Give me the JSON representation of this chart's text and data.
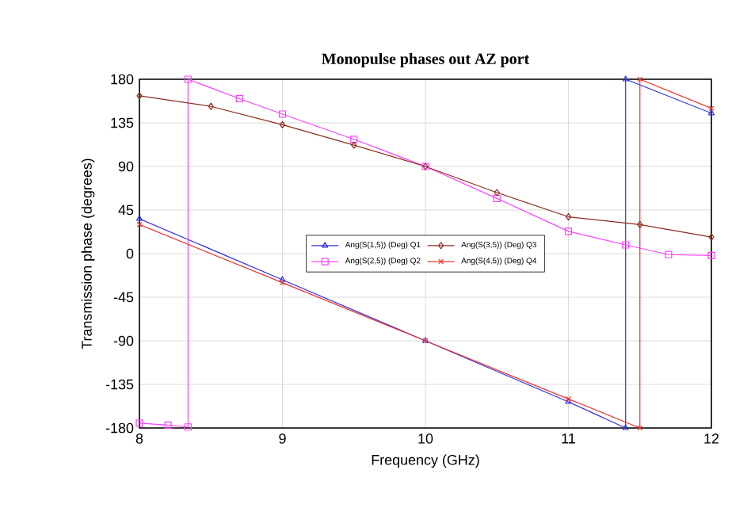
{
  "chart_data": {
    "type": "line",
    "title": "Monopulse phases out AZ port",
    "xlabel": "Frequency (GHz)",
    "ylabel": "Transmission phase (degrees)",
    "xlim": [
      8,
      12
    ],
    "ylim": [
      -180,
      180
    ],
    "xticks": [
      8,
      9,
      10,
      11,
      12
    ],
    "yticks": [
      -180,
      -135,
      -90,
      -45,
      0,
      45,
      90,
      135,
      180
    ],
    "grid": true,
    "legend": "center",
    "series": [
      {
        "name": "Ang(S(1,5)) (Deg) Q1",
        "color": "#3030e0",
        "marker": "triangle",
        "x": [
          8,
          9,
          10,
          11,
          11.4,
          11.4,
          12
        ],
        "values": [
          36,
          -27,
          -90,
          -153,
          -180,
          180,
          145
        ]
      },
      {
        "name": "Ang(S(2,5)) (Deg) Q2",
        "color": "#ff40ff",
        "marker": "square",
        "x": [
          8,
          8.2,
          8.34,
          8.34,
          8.7,
          9,
          9.5,
          10,
          10.5,
          11,
          11.4,
          11.7,
          12
        ],
        "values": [
          -175,
          -177,
          -179,
          180,
          160,
          144,
          118,
          90,
          57,
          23,
          9,
          -1,
          -2
        ]
      },
      {
        "name": "Ang(S(3,5)) (Deg) Q3",
        "color": "#8b2b1f",
        "marker": "diamond",
        "x": [
          8,
          8.5,
          9,
          9.5,
          10,
          10.5,
          11,
          11.5,
          12
        ],
        "values": [
          163,
          152,
          133,
          112,
          90,
          63,
          38,
          30,
          17
        ]
      },
      {
        "name": "Ang(S(4,5)) (Deg) Q4",
        "color": "#f03030",
        "marker": "cross",
        "x": [
          8,
          9,
          10,
          11,
          11.5,
          11.5,
          12
        ],
        "values": [
          30,
          -30,
          -90,
          -150,
          -180,
          180,
          150
        ]
      }
    ]
  }
}
